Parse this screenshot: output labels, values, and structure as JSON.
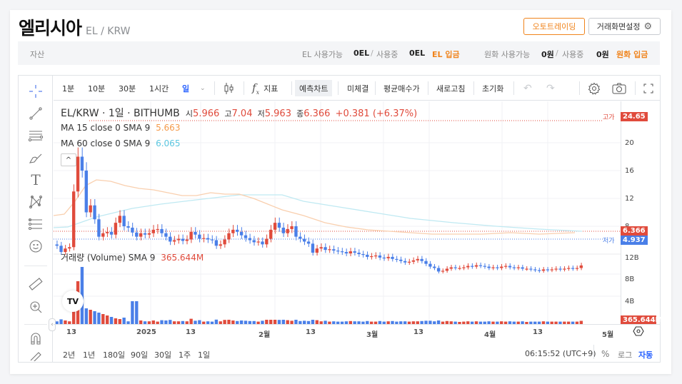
{
  "header": {
    "coin_name": "엘리시아",
    "pair": "EL / KRW",
    "auto_trading_label": "오토트레이딩",
    "settings_label": "거래화면설정"
  },
  "asset_bar": {
    "label": "자산",
    "coin_available_label": "EL 사용가능",
    "coin_available_value": "0EL",
    "coin_in_use_label": "사용중",
    "coin_in_use_value": "0EL",
    "coin_deposit_label": "EL 입금",
    "krw_available_label": "원화 사용가능",
    "krw_available_value": "0원",
    "krw_in_use_label": "사용중",
    "krw_in_use_value": "0원",
    "krw_deposit_label": "원화 입금",
    "slash": "/"
  },
  "toolbar": {
    "intervals": [
      "1분",
      "10분",
      "30분",
      "1시간",
      "일"
    ],
    "active_interval": "일",
    "indicators_label": "지표",
    "forecast_chart_label": "예측차트",
    "unfilled_label": "미체결",
    "avg_buy_price_label": "평균매수가",
    "refresh_label": "새로고침",
    "reset_label": "초기화"
  },
  "legend": {
    "symbol": "EL/KRW · 1일 · BITHUMB",
    "open_label": "시",
    "open": "5.966",
    "high_label": "고",
    "high": "7.04",
    "low_label": "저",
    "low": "5.963",
    "close_label": "종",
    "close": "6.366",
    "change": "+0.381 (+6.37%)",
    "ma15_label": "MA 15 close 0 SMA 9",
    "ma15_value": "5.663",
    "ma60_label": "MA 60 close 0 SMA 9",
    "ma60_value": "6.065",
    "volume_label": "거래량 (Volume) SMA 9",
    "volume_value": "365.644M"
  },
  "price_axis": {
    "ticks": [
      "24",
      "20",
      "16",
      "12",
      "8",
      "4"
    ],
    "high_label": "고가",
    "high_tag": "24.65",
    "current_tag": "6.366",
    "low_label": "저가",
    "low_tag": "4.937"
  },
  "volume_axis": {
    "ticks": [
      "12B",
      "8B",
      "4B"
    ],
    "current_tag": "365.644M"
  },
  "time_axis": {
    "ticks": [
      "13",
      "2025",
      "13",
      "2월",
      "13",
      "3월",
      "13",
      "4월",
      "13",
      "5월"
    ]
  },
  "bottom_bar": {
    "ranges": [
      "2년",
      "1년",
      "180일",
      "90일",
      "30일",
      "1주",
      "1일"
    ],
    "clock": "06:15:52 (UTC+9)",
    "percent_label": "%",
    "log_label": "로그",
    "auto_label": "자동"
  },
  "colors": {
    "up": "#e04b3c",
    "down": "#4a7fe8",
    "accent_orange": "#f0841c",
    "ma15": "#f9c8a0",
    "ma60": "#b8e8f0",
    "active_blue": "#2962ff"
  },
  "chart_data": {
    "type": "candlestick",
    "title": "EL/KRW · 1일 · BITHUMB",
    "x_ticks": [
      "13",
      "2025",
      "13",
      "2월",
      "13",
      "3월",
      "13",
      "4월",
      "13",
      "5월"
    ],
    "y_ticks": [
      24,
      20,
      16,
      12,
      8,
      4
    ],
    "ylim": [
      3,
      26
    ],
    "high_marker": 24.65,
    "low_marker": 4.937,
    "last_close": 6.366,
    "ohlc_last": {
      "open": 5.966,
      "high": 7.04,
      "low": 5.963,
      "close": 6.366
    },
    "series": [
      {
        "name": "MA 15",
        "last": 5.663
      },
      {
        "name": "MA 60",
        "last": 6.065
      },
      {
        "name": "Volume SMA 9",
        "last": "365.644M"
      }
    ],
    "volume_ticks": [
      "12B",
      "8B",
      "4B"
    ]
  }
}
